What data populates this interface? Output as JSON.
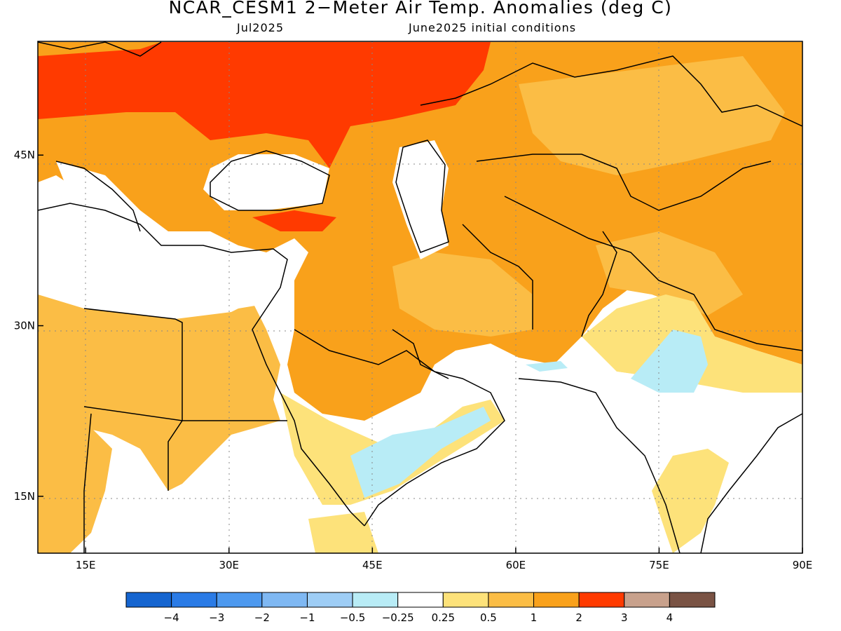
{
  "title": "NCAR_CESM1 2−Meter Air Temp. Anomalies (deg C)",
  "subtitle_left": "Jul2025",
  "subtitle_right": "June2025 initial conditions",
  "axes": {
    "lon_range": [
      10,
      90
    ],
    "lat_range": [
      10,
      55
    ],
    "lat_ticks": [
      {
        "value": 45,
        "label": "45N"
      },
      {
        "value": 30,
        "label": "30N"
      },
      {
        "value": 15,
        "label": "15N"
      }
    ],
    "lon_ticks": [
      {
        "value": 15,
        "label": "15E"
      },
      {
        "value": 30,
        "label": "30E"
      },
      {
        "value": 45,
        "label": "45E"
      },
      {
        "value": 60,
        "label": "60E"
      },
      {
        "value": 75,
        "label": "75E"
      },
      {
        "value": 90,
        "label": "90E"
      }
    ],
    "grid": "dotted"
  },
  "colorbar": {
    "bins": [
      {
        "color": "#1565d0"
      },
      {
        "color": "#2a7be6"
      },
      {
        "color": "#4d99ef"
      },
      {
        "color": "#7fb8f3"
      },
      {
        "color": "#9ecdf5"
      },
      {
        "color": "#b8ecf6"
      },
      {
        "color": "#ffffff"
      },
      {
        "color": "#fde27a"
      },
      {
        "color": "#fbbd45"
      },
      {
        "color": "#f9a11b"
      },
      {
        "color": "#ff3a00"
      },
      {
        "color": "#c8a18c"
      },
      {
        "color": "#7a5344"
      }
    ],
    "labels": [
      "−4",
      "−3",
      "−2",
      "−1",
      "−0.5",
      "−0.25",
      "0.25",
      "0.5",
      "1",
      "2",
      "3",
      "4"
    ]
  }
}
